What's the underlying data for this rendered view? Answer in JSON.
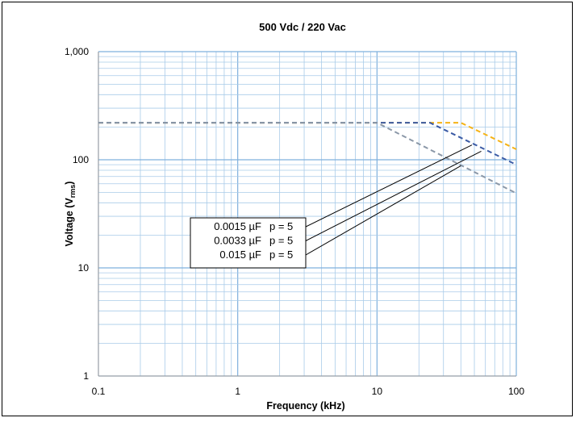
{
  "chart_data": {
    "type": "line",
    "title": "500 Vdc / 220 Vac",
    "xlabel": "Frequency (kHz)",
    "ylabel_main": "Voltage (V",
    "ylabel_sub": "rms",
    "ylabel_close": ")",
    "xscale": "log",
    "yscale": "log",
    "xlim": [
      0.1,
      100
    ],
    "ylim": [
      1,
      1000
    ],
    "xticks": [
      {
        "value": 0.1,
        "label": "0.1"
      },
      {
        "value": 1,
        "label": "1"
      },
      {
        "value": 10,
        "label": "10"
      },
      {
        "value": 100,
        "label": "100"
      }
    ],
    "yticks": [
      {
        "value": 1,
        "label": "1"
      },
      {
        "value": 10,
        "label": "10"
      },
      {
        "value": 100,
        "label": "100"
      },
      {
        "value": 1000,
        "label": "1,000"
      }
    ],
    "grid": true,
    "legend_placement": "center-left",
    "series": [
      {
        "name": "0.0015 µF",
        "p": "p = 5",
        "color": "#f5b316",
        "style": "dashed",
        "x": [
          0.1,
          24,
          40,
          100
        ],
        "y": [
          220,
          220,
          220,
          125
        ],
        "leader_target": [
          48,
          137
        ]
      },
      {
        "name": "0.0033 µF",
        "p": "p = 5",
        "color": "#3b5ba5",
        "style": "dashed",
        "x": [
          0.1,
          24,
          100
        ],
        "y": [
          220,
          220,
          90
        ],
        "leader_target": [
          56,
          120
        ]
      },
      {
        "name": "0.015 µF",
        "p": "p = 5",
        "color": "#8b98a8",
        "style": "dashed",
        "x": [
          0.1,
          10,
          100
        ],
        "y": [
          220,
          220,
          49
        ],
        "leader_target": [
          40,
          88
        ]
      }
    ]
  }
}
